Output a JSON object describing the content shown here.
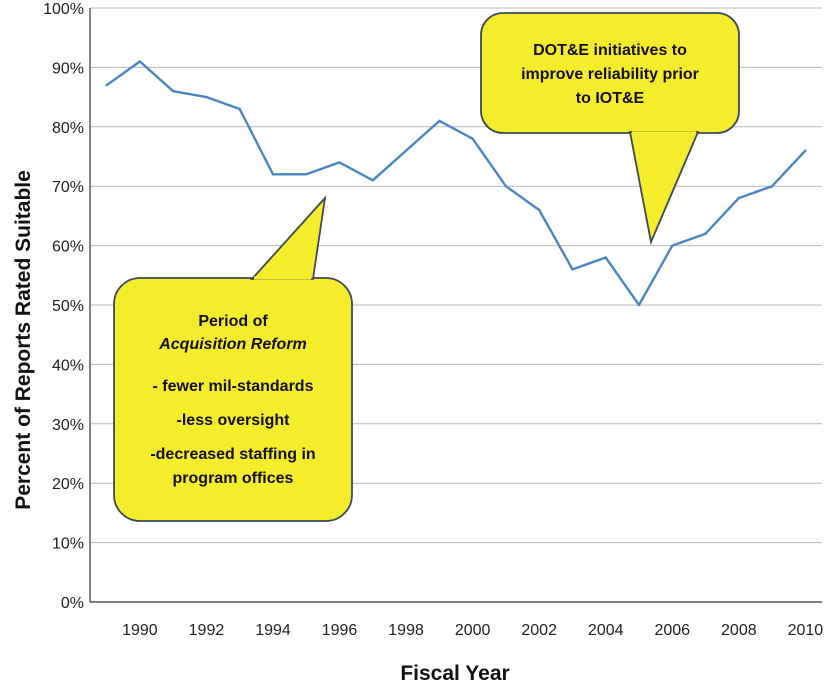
{
  "chart_data": {
    "type": "line",
    "title": "",
    "xlabel": "Fiscal Year",
    "ylabel": "Percent of Reports Rated Suitable",
    "x": [
      1989,
      1990,
      1991,
      1992,
      1993,
      1994,
      1995,
      1996,
      1997,
      1998,
      1999,
      2000,
      2001,
      2002,
      2003,
      2004,
      2005,
      2006,
      2007,
      2008,
      2009,
      2010
    ],
    "series": [
      {
        "values": [
          87,
          91,
          86,
          85,
          83,
          72,
          72,
          74,
          71,
          76,
          81,
          78,
          70,
          66,
          56,
          58,
          50,
          60,
          62,
          68,
          70,
          76
        ],
        "color": "#4a86c5"
      }
    ],
    "xlim": [
      1988.5,
      2010.5
    ],
    "ylim": [
      0,
      100
    ],
    "x_ticks": [
      "1990",
      "1992",
      "1994",
      "1996",
      "1998",
      "2000",
      "2002",
      "2004",
      "2006",
      "2008",
      "2010"
    ],
    "y_ticks": [
      "0%",
      "10%",
      "20%",
      "30%",
      "40%",
      "50%",
      "60%",
      "70%",
      "80%",
      "90%",
      "100%"
    ],
    "grid": true,
    "annotations": [
      {
        "id": "acq",
        "fill": "#f5ec2c",
        "lines": [
          {
            "text": "Period of",
            "italic": false
          },
          {
            "text": "Acquisition Reform",
            "italic": true
          },
          {
            "text": "- fewer mil-standards",
            "italic": false
          },
          {
            "text": "-less oversight",
            "italic": false
          },
          {
            "text": "-decreased staffing in",
            "italic": false
          },
          {
            "text": "program offices",
            "italic": false
          }
        ]
      },
      {
        "id": "dote",
        "fill": "#f5ec2c",
        "lines": [
          {
            "text": "DOT&E initiatives to",
            "italic": false
          },
          {
            "text": "improve reliability prior",
            "italic": false
          },
          {
            "text": "to IOT&E",
            "italic": false
          }
        ]
      }
    ]
  }
}
